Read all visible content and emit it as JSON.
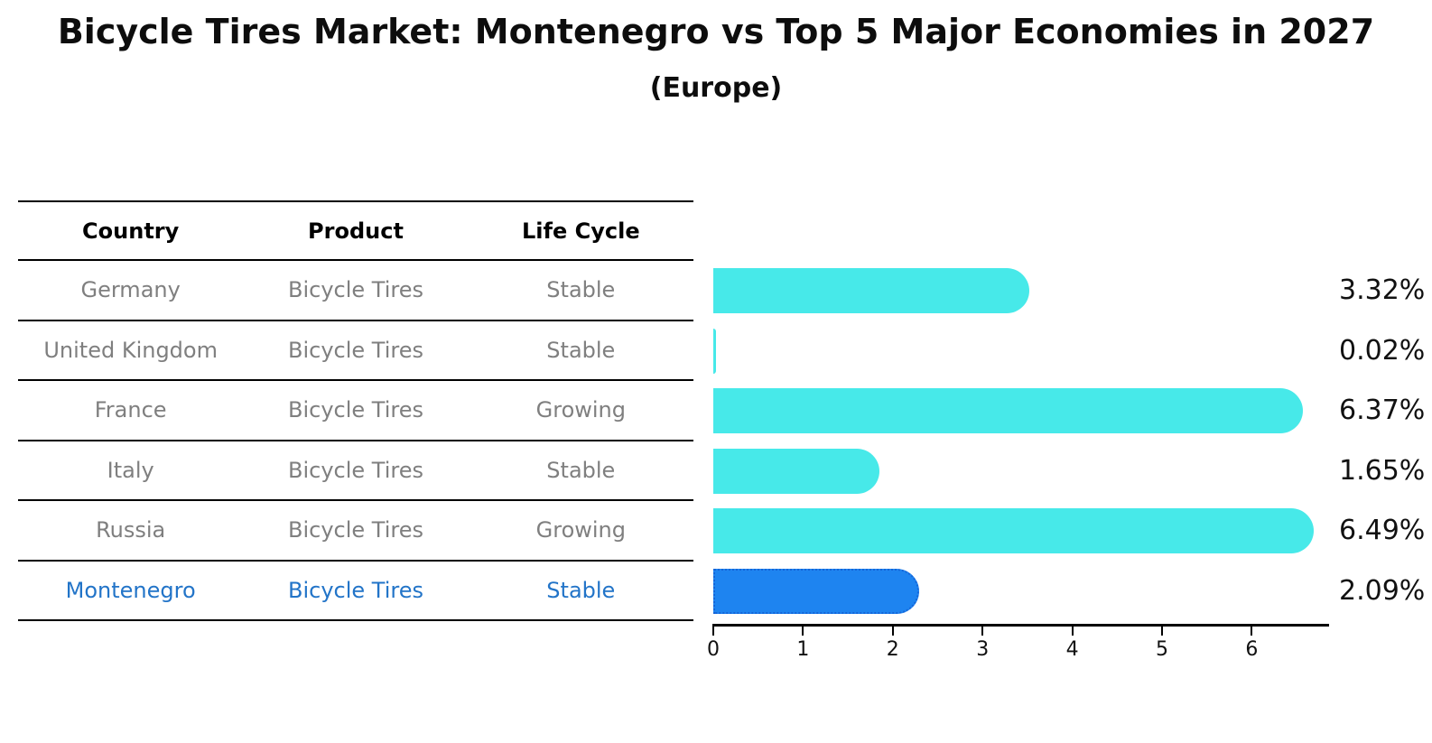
{
  "header": {
    "title": "Bicycle Tires Market: Montenegro vs Top 5 Major Economies in 2027",
    "subtitle": "(Europe)"
  },
  "table": {
    "columns": [
      "Country",
      "Product",
      "Life Cycle"
    ],
    "rows": [
      {
        "country": "Germany",
        "product": "Bicycle Tires",
        "life_cycle": "Stable",
        "highlighted": false
      },
      {
        "country": "United Kingdom",
        "product": "Bicycle Tires",
        "life_cycle": "Stable",
        "highlighted": false
      },
      {
        "country": "France",
        "product": "Bicycle Tires",
        "life_cycle": "Growing",
        "highlighted": false
      },
      {
        "country": "Italy",
        "product": "Bicycle Tires",
        "life_cycle": "Stable",
        "highlighted": false
      },
      {
        "country": "Russia",
        "product": "Bicycle Tires",
        "life_cycle": "Growing",
        "highlighted": false
      },
      {
        "country": "Montenegro",
        "product": "Bicycle Tires",
        "life_cycle": "Stable",
        "highlighted": true
      }
    ]
  },
  "chart_data": {
    "type": "bar",
    "orientation": "horizontal",
    "title": "Bicycle Tires Market: Montenegro vs Top 5 Major Economies in 2027",
    "subtitle": "(Europe)",
    "categories": [
      "Germany",
      "United Kingdom",
      "France",
      "Italy",
      "Russia",
      "Montenegro"
    ],
    "values": [
      3.32,
      0.02,
      6.37,
      1.65,
      6.49,
      2.09
    ],
    "value_labels": [
      "3.32%",
      "0.02%",
      "6.37%",
      "1.65%",
      "6.49%",
      "2.09%"
    ],
    "highlight_index": 5,
    "xlim": [
      0,
      6.85
    ],
    "x_ticks": [
      0,
      1,
      2,
      3,
      4,
      5,
      6
    ],
    "grid": false,
    "legend": false,
    "unit": "%"
  },
  "colors": {
    "bar_default": "#47e9e9",
    "bar_highlight": "#1e84f0",
    "bar_highlight_border": "#1565d8",
    "highlight_text": "#2274c8",
    "table_text": "#7f7f7f",
    "axis": "#000000"
  }
}
